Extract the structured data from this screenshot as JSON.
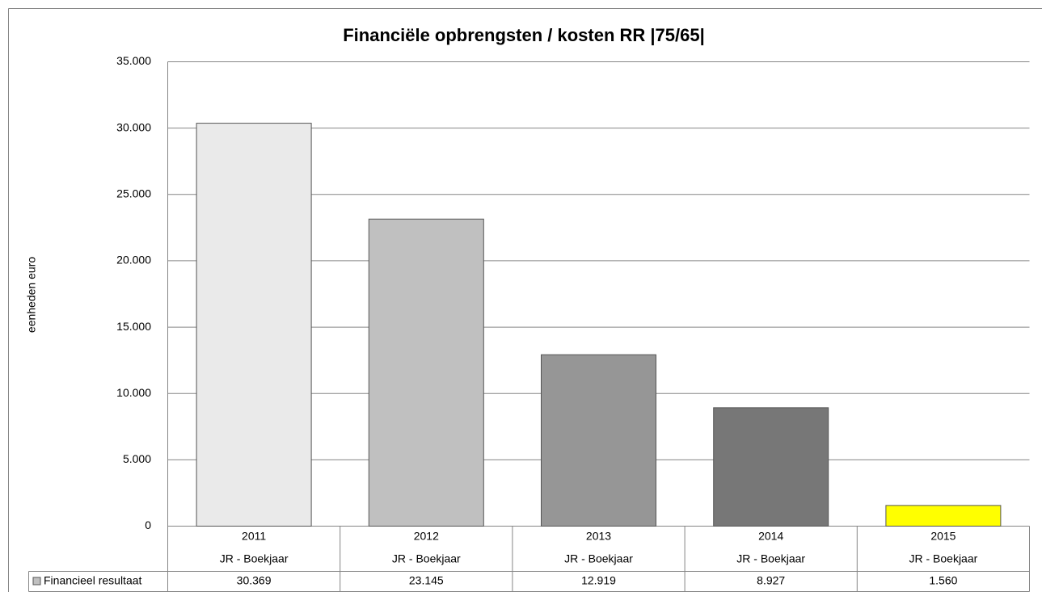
{
  "chart_data": {
    "type": "bar",
    "title": "Financiële opbrengsten / kosten RR |75/65|",
    "ylabel": "eenheden euro",
    "categories": [
      "2011",
      "2012",
      "2013",
      "2014",
      "2015"
    ],
    "category_sublabels": [
      "JR - Boekjaar",
      "JR - Boekjaar",
      "JR - Boekjaar",
      "JR - Boekjaar",
      "JR - Boekjaar"
    ],
    "series": [
      {
        "name": "Financieel resultaat",
        "color": "#c0c0c0",
        "point_colors": [
          "#eaeaea",
          "#c0c0c0",
          "#969696",
          "#777777",
          "#ffff00"
        ],
        "values": [
          30369,
          23145,
          12919,
          8927,
          1560
        ],
        "value_labels": [
          "30.369",
          "23.145",
          "12.919",
          "8.927",
          "1.560"
        ]
      }
    ],
    "ylim": [
      0,
      35000
    ],
    "yticks": [
      0,
      {
        "value": 5000,
        "label": "5.000"
      },
      {
        "value": 10000,
        "label": "10.000"
      },
      {
        "value": 15000,
        "label": "15.000"
      },
      {
        "value": 20000,
        "label": "20.000"
      },
      {
        "value": 25000,
        "label": "25.000"
      },
      {
        "value": 30000,
        "label": "30.000"
      },
      {
        "value": 35000,
        "label": "35.000"
      }
    ],
    "grid": true,
    "data_table": true
  }
}
